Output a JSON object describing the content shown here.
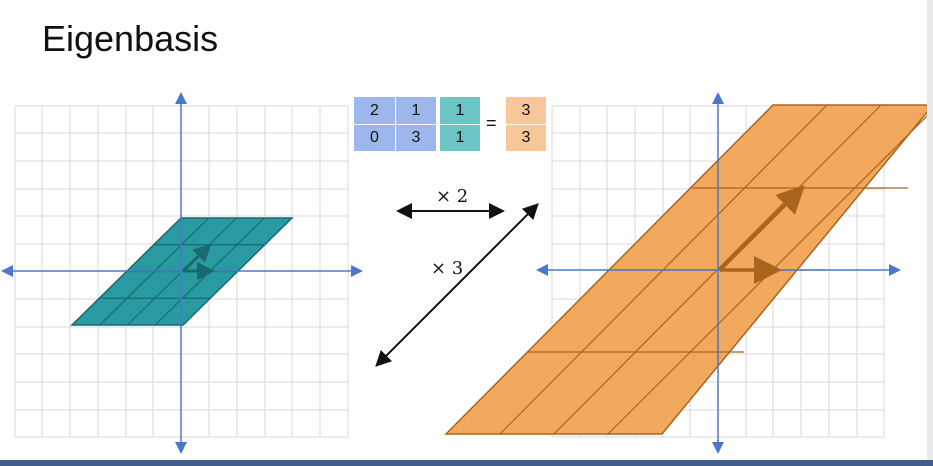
{
  "title": "Eigenbasis",
  "matrix": [
    [
      "2",
      "1"
    ],
    [
      "0",
      "3"
    ]
  ],
  "vector": [
    "1",
    "1"
  ],
  "equals": "=",
  "result": [
    "3",
    "3"
  ],
  "scale_labels": {
    "horizontal": "× 2",
    "diagonal": "× 3"
  },
  "colors": {
    "matrix_fill": "#9db7ec",
    "vector_fill": "#6cc4c4",
    "result_fill": "#f7c79a",
    "teal_parallelogram": "#2a9aa1",
    "orange_parallelogram": "#f3a95d",
    "axis": "#4a78cc",
    "grid": "#d9d9d9"
  }
}
